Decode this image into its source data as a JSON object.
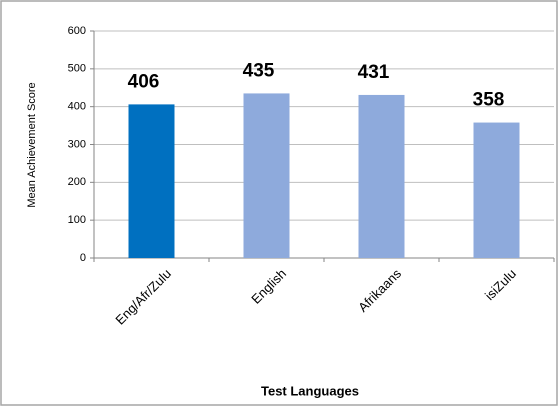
{
  "chart_data": {
    "type": "bar",
    "categories": [
      "Eng/Afr/Zulu",
      "English",
      "Afrikaans",
      "isiZulu"
    ],
    "values": [
      406,
      435,
      431,
      358
    ],
    "colors": [
      "#0070c0",
      "#8eaadc",
      "#8eaadc",
      "#8eaadc"
    ],
    "ylim": [
      0,
      600
    ],
    "yticks": [
      0,
      100,
      200,
      300,
      400,
      500,
      600
    ],
    "ylabel": "Mean Achievement Score",
    "xlabel": "Test Languages",
    "grid": true
  }
}
